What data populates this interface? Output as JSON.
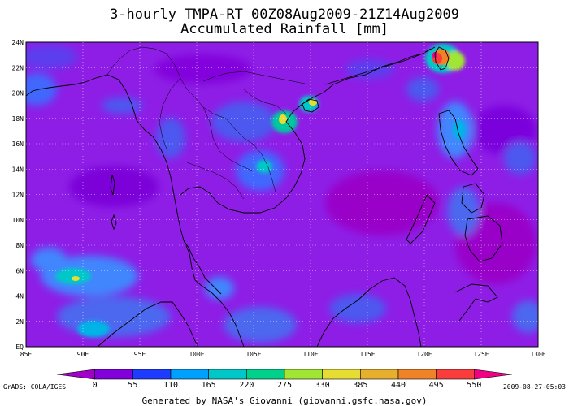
{
  "title": {
    "line1": "3-hourly TMPA-RT 00Z08Aug2009-21Z14Aug2009",
    "line2": "Accumulated Rainfall [mm]"
  },
  "map": {
    "lon_ticks": [
      "85E",
      "90E",
      "95E",
      "100E",
      "105E",
      "110E",
      "115E",
      "120E",
      "125E",
      "130E"
    ],
    "lat_ticks": [
      "EQ",
      "2N",
      "4N",
      "6N",
      "8N",
      "10N",
      "12N",
      "14N",
      "16N",
      "18N",
      "20N",
      "22N",
      "24N"
    ],
    "background_color": "#8e1ee6"
  },
  "colorbar": {
    "labels": [
      "0",
      "55",
      "110",
      "165",
      "220",
      "275",
      "330",
      "385",
      "440",
      "495",
      "550"
    ],
    "colors": [
      "#a000c8",
      "#8200dc",
      "#1e3cff",
      "#00a0ff",
      "#00c8c8",
      "#00d28c",
      "#a0e632",
      "#e6dc32",
      "#e6af2d",
      "#f08228",
      "#fa3c3c",
      "#f00082"
    ]
  },
  "footer": {
    "left": "GrADS: COLA/IGES",
    "right": "2009-08-27-05:03",
    "credit": "Generated by NASA's Giovanni (giovanni.gsfc.nasa.gov)"
  }
}
